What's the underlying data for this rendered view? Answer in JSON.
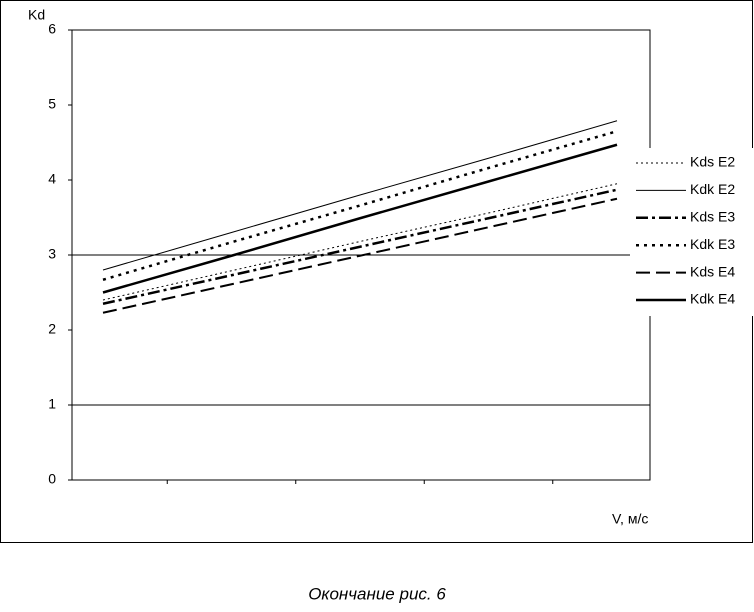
{
  "chart_data": {
    "type": "line",
    "y_label": "Kd",
    "x_label": "V, м/с",
    "caption": "Окончание рис. 6",
    "categories": [
      null,
      null,
      null,
      null,
      null
    ],
    "ylim": [
      0,
      6
    ],
    "yticks": [
      0,
      1,
      2,
      3,
      4,
      5,
      6
    ],
    "grid_values": [
      1,
      3
    ],
    "legend": "right",
    "series": [
      {
        "name": "Kds E2",
        "color": "#000000",
        "width": 1,
        "dash": "2,3",
        "values": [
          2.4,
          2.79,
          3.18,
          3.56,
          3.95
        ]
      },
      {
        "name": "Kdk E2",
        "color": "#000000",
        "width": 1,
        "dash": "none",
        "values": [
          2.8,
          3.3,
          3.8,
          4.29,
          4.79
        ]
      },
      {
        "name": "Kds E3",
        "color": "#000000",
        "width": 2.5,
        "dash": "12,4,3,4",
        "values": [
          2.35,
          2.73,
          3.11,
          3.49,
          3.87
        ]
      },
      {
        "name": "Kdk E3",
        "color": "#000000",
        "width": 2.5,
        "dash": "3,5",
        "values": [
          2.67,
          3.17,
          3.66,
          4.16,
          4.65
        ]
      },
      {
        "name": "Kds E4",
        "color": "#000000",
        "width": 2,
        "dash": "14,6",
        "values": [
          2.23,
          2.61,
          2.99,
          3.37,
          3.75
        ]
      },
      {
        "name": "Kdk E4",
        "color": "#000000",
        "width": 2.5,
        "dash": "none",
        "values": [
          2.5,
          2.99,
          3.49,
          3.98,
          4.47
        ]
      }
    ]
  }
}
